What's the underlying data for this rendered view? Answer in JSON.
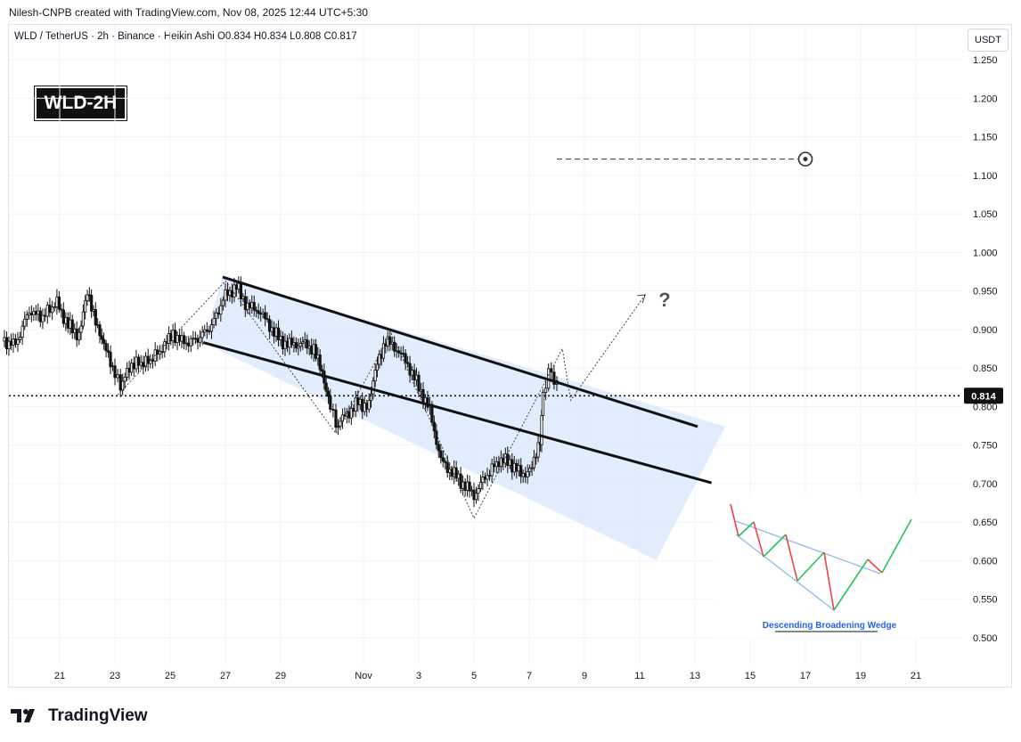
{
  "header": {
    "attribution": "Nilesh-CNPB created with TradingView.com, Nov 08, 2025 12:44 UTC+5:30",
    "symbol_line": "WLD / TetherUS · 2h · Binance · Heikin Ashi O0.834 H0.834 L0.808 C0.817"
  },
  "currency_button": "USDT",
  "badge": "WLD-2H",
  "price_label": "0.814",
  "question_mark": "?",
  "inset": {
    "label": "Descending Broadening Wedge"
  },
  "footer": {
    "brand": "TradingView",
    "logo_icon": "tradingview-logo-icon"
  },
  "colors": {
    "wedge_fill": "#dce9fb",
    "up": "#22c55e",
    "down": "#ef4444",
    "trend": "#8bb8e8"
  },
  "chart_data": {
    "type": "candlestick",
    "title": "WLD-2H",
    "ylim": [
      0.475,
      1.265
    ],
    "y_ticks": [
      "1.250",
      "1.200",
      "1.150",
      "1.100",
      "1.050",
      "1.000",
      "0.950",
      "0.900",
      "0.850",
      "0.800",
      "0.750",
      "0.700",
      "0.650",
      "0.600",
      "0.550",
      "0.500"
    ],
    "x_ticks": [
      "21",
      "23",
      "25",
      "27",
      "29",
      "Nov",
      "3",
      "5",
      "7",
      "9",
      "11",
      "13",
      "15",
      "17",
      "19",
      "21"
    ],
    "x_tick_days": [
      21,
      23,
      25,
      27,
      29,
      32,
      34,
      36,
      38,
      40,
      42,
      44,
      46,
      48,
      50,
      52
    ],
    "x_day_unit": "day of Oct 2025 (Nov 1 = 32)",
    "current_price": 0.814,
    "price_path": [
      [
        19.0,
        0.885
      ],
      [
        19.4,
        0.88
      ],
      [
        19.9,
        0.925
      ],
      [
        20.3,
        0.915
      ],
      [
        20.9,
        0.935
      ],
      [
        21.3,
        0.905
      ],
      [
        21.7,
        0.893
      ],
      [
        22.0,
        0.945
      ],
      [
        22.3,
        0.915
      ],
      [
        22.6,
        0.878
      ],
      [
        23.0,
        0.845
      ],
      [
        23.2,
        0.825
      ],
      [
        23.6,
        0.855
      ],
      [
        24.2,
        0.858
      ],
      [
        24.8,
        0.878
      ],
      [
        25.1,
        0.895
      ],
      [
        25.5,
        0.882
      ],
      [
        26.0,
        0.888
      ],
      [
        26.5,
        0.905
      ],
      [
        27.0,
        0.945
      ],
      [
        27.4,
        0.955
      ],
      [
        27.8,
        0.93
      ],
      [
        28.2,
        0.925
      ],
      [
        28.6,
        0.905
      ],
      [
        29.0,
        0.885
      ],
      [
        29.4,
        0.88
      ],
      [
        29.8,
        0.882
      ],
      [
        30.2,
        0.875
      ],
      [
        30.5,
        0.84
      ],
      [
        30.8,
        0.805
      ],
      [
        31.0,
        0.775
      ],
      [
        31.4,
        0.79
      ],
      [
        31.8,
        0.805
      ],
      [
        32.2,
        0.8
      ],
      [
        32.5,
        0.86
      ],
      [
        32.8,
        0.885
      ],
      [
        33.2,
        0.875
      ],
      [
        33.6,
        0.855
      ],
      [
        34.0,
        0.825
      ],
      [
        34.4,
        0.795
      ],
      [
        34.8,
        0.73
      ],
      [
        35.2,
        0.715
      ],
      [
        35.6,
        0.7
      ],
      [
        36.0,
        0.685
      ],
      [
        36.4,
        0.708
      ],
      [
        36.9,
        0.73
      ],
      [
        37.3,
        0.728
      ],
      [
        37.7,
        0.712
      ],
      [
        38.1,
        0.718
      ],
      [
        38.4,
        0.76
      ],
      [
        38.5,
        0.81
      ],
      [
        38.7,
        0.848
      ],
      [
        38.9,
        0.835
      ],
      [
        39.1,
        0.817
      ]
    ],
    "wedge_upper": [
      [
        26.9,
        0.968
      ],
      [
        44.1,
        0.774
      ]
    ],
    "wedge_lower": [
      [
        26.2,
        0.883
      ],
      [
        44.6,
        0.701
      ]
    ],
    "wedge_right_edge": [
      [
        44.1,
        0.774
      ],
      [
        42.8,
        0.601
      ]
    ],
    "wedge_bottom": [
      [
        44.1,
        0.774
      ],
      [
        44.5,
        0.601
      ]
    ],
    "fill_polygon": [
      [
        26.9,
        0.968
      ],
      [
        45.1,
        0.774
      ],
      [
        42.6,
        0.601
      ],
      [
        26.2,
        0.883
      ]
    ],
    "swing_path": [
      [
        23.1,
        0.815
      ],
      [
        27.0,
        0.963
      ],
      [
        31.0,
        0.765
      ],
      [
        33.0,
        0.895
      ],
      [
        36.0,
        0.655
      ],
      [
        39.2,
        0.875
      ],
      [
        39.5,
        0.808
      ],
      [
        42.2,
        0.945
      ]
    ],
    "target_line": {
      "x_start": 39.0,
      "x_end": 48.0,
      "y": 1.121
    }
  }
}
